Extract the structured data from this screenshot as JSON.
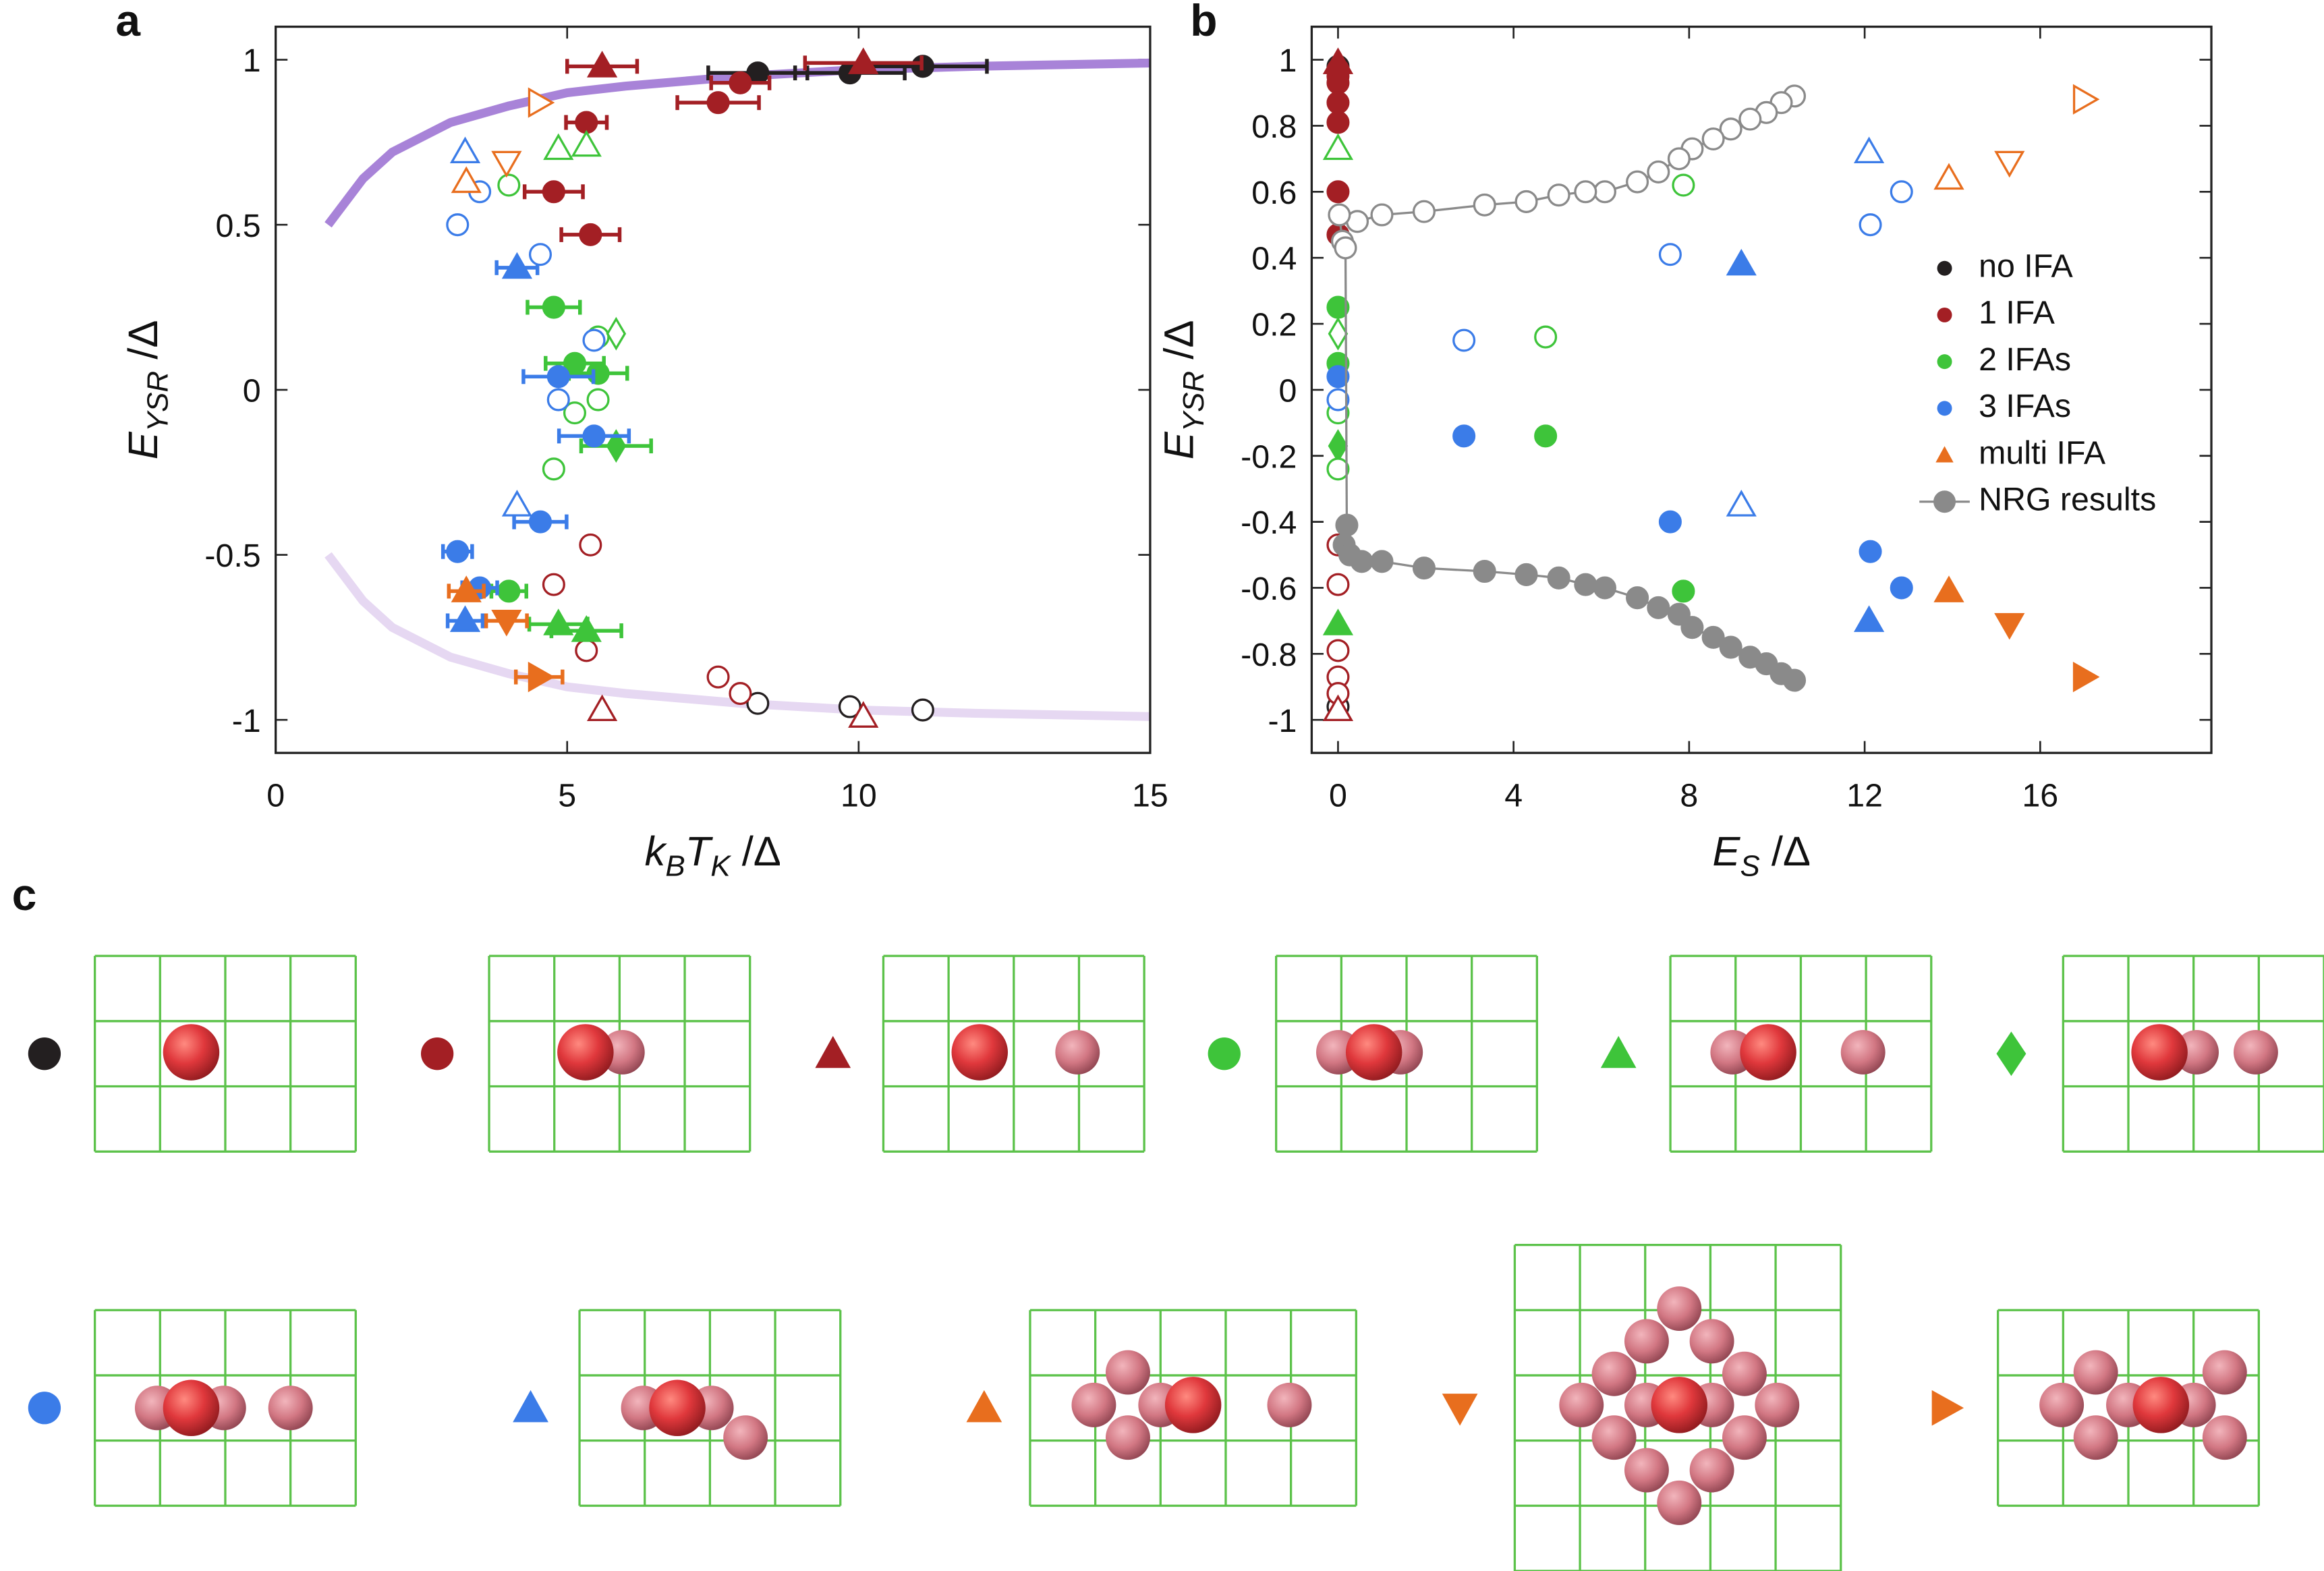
{
  "chart_data": [
    {
      "type": "scatter",
      "label": "a",
      "xlabel": [
        {
          "text": "k",
          "italic": true
        },
        {
          "text": "B",
          "italic": true,
          "sub": true
        },
        {
          "text": "T",
          "italic": true
        },
        {
          "text": "K",
          "italic": true,
          "sub": true
        },
        {
          "text": " /Δ"
        }
      ],
      "ylabel": [
        {
          "text": "E",
          "italic": true
        },
        {
          "text": "YSR",
          "italic": true,
          "sub": true
        },
        {
          "text": " /Δ"
        }
      ],
      "xlim": [
        0,
        15
      ],
      "ylim": [
        -1.1,
        1.1
      ],
      "xticks": [
        0,
        5,
        10,
        15
      ],
      "yticks": [
        1,
        0.5,
        0,
        -0.5,
        -1
      ],
      "curves": [
        {
          "color": "#a883d8",
          "x": [
            0.9,
            1.5,
            2,
            3,
            4,
            5,
            6,
            8,
            10,
            12,
            15
          ],
          "values": [
            0.5,
            0.64,
            0.72,
            0.81,
            0.86,
            0.9,
            0.92,
            0.95,
            0.97,
            0.98,
            0.99
          ]
        },
        {
          "color": "#e6d8f2",
          "x": [
            0.9,
            1.5,
            2,
            3,
            4,
            5,
            6,
            8,
            10,
            12,
            15
          ],
          "values": [
            -0.5,
            -0.64,
            -0.72,
            -0.81,
            -0.86,
            -0.9,
            -0.92,
            -0.95,
            -0.97,
            -0.98,
            -0.99
          ]
        }
      ],
      "series": [
        {
          "color": "#231f20",
          "x": [
            8.27,
            9.85,
            11.1,
            8.27,
            9.85,
            11.1
          ],
          "values": [
            0.96,
            0.96,
            0.98,
            -0.95,
            -0.96,
            -0.97
          ],
          "marker": [
            "o",
            "o",
            "o",
            "o",
            "o",
            "o"
          ],
          "filled": [
            true,
            true,
            true,
            false,
            false,
            false
          ],
          "xerr": [
            0.85,
            0.94,
            1.1,
            null,
            null,
            null
          ]
        },
        {
          "color": "#a31f24",
          "x": [
            5.33,
            7.97,
            7.59,
            4.77,
            5.4,
            5.6,
            10.08,
            5.4,
            4.77,
            5.33,
            7.59,
            7.97,
            5.6,
            10.08
          ],
          "values": [
            0.81,
            0.93,
            0.87,
            0.6,
            0.47,
            0.98,
            0.99,
            -0.47,
            -0.59,
            -0.79,
            -0.87,
            -0.92,
            -0.97,
            -0.99
          ],
          "marker": [
            "o",
            "o",
            "o",
            "o",
            "o",
            "^",
            "^",
            "o",
            "o",
            "o",
            "o",
            "o",
            "^",
            "^"
          ],
          "filled": [
            true,
            true,
            true,
            true,
            true,
            true,
            true,
            false,
            false,
            false,
            false,
            false,
            false,
            false
          ],
          "xerr": [
            0.35,
            0.5,
            0.7,
            0.5,
            0.5,
            0.6,
            1.0,
            null,
            null,
            null,
            null,
            null,
            null,
            null
          ]
        },
        {
          "color": "#3ec43a",
          "x": [
            4.77,
            5.13,
            5.53,
            4.0,
            4.85,
            5.33,
            5.84,
            4.0,
            4.77,
            5.13,
            5.53,
            5.53,
            4.85,
            5.33,
            5.84
          ],
          "values": [
            0.25,
            0.08,
            0.05,
            -0.61,
            -0.71,
            -0.73,
            -0.17,
            0.62,
            -0.24,
            -0.07,
            -0.03,
            0.16,
            0.73,
            0.74,
            0.17
          ],
          "marker": [
            "o",
            "o",
            "o",
            "o",
            "^",
            "^",
            "d",
            "o",
            "o",
            "o",
            "o",
            "o",
            "^",
            "^",
            "d"
          ],
          "filled": [
            true,
            true,
            true,
            true,
            true,
            true,
            true,
            false,
            false,
            false,
            false,
            false,
            false,
            false,
            false
          ],
          "xerr": [
            0.45,
            0.5,
            0.5,
            0.3,
            0.5,
            0.6,
            0.6,
            null,
            null,
            null,
            null,
            null,
            null,
            null,
            null
          ]
        },
        {
          "color": "#3b7ce8",
          "x": [
            3.12,
            3.5,
            4.54,
            4.85,
            5.46,
            4.14,
            3.25,
            3.12,
            3.5,
            4.54,
            4.85,
            5.46,
            3.25,
            4.14
          ],
          "values": [
            -0.49,
            -0.6,
            -0.4,
            0.04,
            -0.14,
            0.37,
            -0.7,
            0.5,
            0.6,
            0.41,
            -0.03,
            0.15,
            0.72,
            -0.35
          ],
          "marker": [
            "o",
            "o",
            "o",
            "o",
            "o",
            "^",
            "^",
            "o",
            "o",
            "o",
            "o",
            "o",
            "^",
            "^"
          ],
          "filled": [
            true,
            true,
            true,
            true,
            true,
            true,
            true,
            false,
            false,
            false,
            false,
            false,
            false,
            false
          ],
          "xerr": [
            0.25,
            0.3,
            0.45,
            0.6,
            0.6,
            0.35,
            0.3,
            null,
            null,
            null,
            null,
            null,
            null,
            null
          ]
        },
        {
          "color": "#e86e1e",
          "x": [
            3.27,
            3.27,
            3.96,
            3.96,
            4.52,
            4.52
          ],
          "values": [
            -0.61,
            0.63,
            -0.7,
            0.69,
            -0.87,
            0.87
          ],
          "marker": [
            "^",
            "^",
            "v",
            "v",
            ">",
            ">"
          ],
          "filled": [
            true,
            false,
            true,
            false,
            true,
            false
          ],
          "xerr": [
            0.3,
            null,
            0.35,
            null,
            0.4,
            null
          ]
        }
      ]
    },
    {
      "type": "scatter",
      "label": "b",
      "xlabel": [
        {
          "text": "E",
          "italic": true
        },
        {
          "text": "S",
          "italic": true,
          "sub": true
        },
        {
          "text": " /Δ"
        }
      ],
      "ylabel": [
        {
          "text": "E",
          "italic": true
        },
        {
          "text": "YSR",
          "italic": true,
          "sub": true
        },
        {
          "text": " /Δ"
        }
      ],
      "xlim": [
        -0.6,
        19.9
      ],
      "ylim": [
        -1.1,
        1.1
      ],
      "xticks": [
        0,
        4,
        8,
        12,
        16
      ],
      "yticks": [
        1,
        0.8,
        0.6,
        0.4,
        0.2,
        0,
        -0.2,
        -0.4,
        -0.6,
        -0.8,
        -1
      ],
      "legend": "upper right",
      "series": [
        {
          "name": "no IFA",
          "color": "#231f20",
          "x": [
            0,
            0
          ],
          "values": [
            0.98,
            -0.96
          ],
          "marker": [
            "o",
            "o"
          ],
          "filled": [
            true,
            false
          ]
        },
        {
          "name": "1 IFA",
          "color": "#a31f24",
          "x": [
            0,
            0,
            0,
            0,
            0,
            0,
            0,
            0,
            0,
            0,
            0,
            0,
            0,
            0
          ],
          "values": [
            0.97,
            0.95,
            0.93,
            0.87,
            0.81,
            0.6,
            0.47,
            0.99,
            -0.47,
            -0.59,
            -0.79,
            -0.87,
            -0.92,
            -0.97
          ],
          "marker": [
            "o",
            "o",
            "o",
            "o",
            "o",
            "o",
            "o",
            "^",
            "o",
            "o",
            "o",
            "o",
            "o",
            "^"
          ],
          "filled": [
            true,
            true,
            true,
            true,
            true,
            true,
            true,
            true,
            false,
            false,
            false,
            false,
            false,
            false
          ]
        },
        {
          "name": "2 IFAs",
          "color": "#3ec43a",
          "x": [
            0,
            0,
            0,
            0,
            0,
            0,
            0,
            0,
            4.73,
            4.73,
            7.87,
            7.87
          ],
          "values": [
            0.25,
            0.08,
            -0.71,
            -0.17,
            -0.07,
            -0.24,
            0.73,
            0.17,
            0.16,
            -0.14,
            0.62,
            -0.61
          ],
          "marker": [
            "o",
            "o",
            "^",
            "d",
            "o",
            "o",
            "^",
            "d",
            "o",
            "o",
            "o",
            "o"
          ],
          "filled": [
            true,
            true,
            true,
            true,
            false,
            false,
            false,
            false,
            false,
            true,
            false,
            true
          ]
        },
        {
          "name": "3 IFAs",
          "color": "#3b7ce8",
          "x": [
            0,
            0,
            2.87,
            2.87,
            7.57,
            7.57,
            9.19,
            9.19,
            12.1,
            12.1,
            12.13,
            12.13,
            12.84,
            12.84
          ],
          "values": [
            0.04,
            -0.03,
            0.15,
            -0.14,
            0.41,
            -0.4,
            0.38,
            -0.35,
            0.72,
            -0.7,
            0.5,
            -0.49,
            0.6,
            -0.6
          ],
          "marker": [
            "o",
            "o",
            "o",
            "o",
            "o",
            "o",
            "^",
            "^",
            "^",
            "^",
            "o",
            "o",
            "o",
            "o"
          ],
          "filled": [
            true,
            false,
            false,
            true,
            false,
            true,
            true,
            false,
            false,
            true,
            false,
            true,
            false,
            true
          ]
        },
        {
          "name": "multi IFA",
          "color": "#e86e1e",
          "x": [
            13.92,
            13.92,
            15.3,
            15.3,
            17.0,
            17.0
          ],
          "values": [
            0.64,
            -0.61,
            0.69,
            -0.71,
            0.88,
            -0.87
          ],
          "marker": [
            "^",
            "^",
            "v",
            "v",
            ">",
            ">"
          ],
          "filled": [
            false,
            true,
            false,
            true,
            false,
            true
          ]
        },
        {
          "name": "NRG results",
          "color": "#8a8a8a",
          "line": true,
          "x": [
            10.4,
            10.1,
            9.76,
            9.39,
            8.95,
            8.55,
            8.07,
            7.77,
            7.3,
            6.82,
            6.08,
            5.64,
            5.03,
            4.29,
            3.34,
            1.96,
            1.0,
            0.44,
            0.03,
            0.1,
            0.17,
            0.2,
            0.14,
            0.27,
            0.54,
            1.0,
            1.96,
            3.34,
            4.29,
            5.03,
            5.64,
            6.08,
            6.82,
            7.3,
            7.77,
            8.07,
            8.55,
            8.95,
            9.39,
            9.76,
            10.1,
            10.4
          ],
          "values": [
            0.89,
            0.87,
            0.84,
            0.82,
            0.79,
            0.76,
            0.73,
            0.7,
            0.66,
            0.63,
            0.6,
            0.6,
            0.59,
            0.57,
            0.56,
            0.54,
            0.53,
            0.51,
            0.53,
            0.45,
            0.43,
            -0.41,
            -0.47,
            -0.5,
            -0.52,
            -0.52,
            -0.54,
            -0.55,
            -0.56,
            -0.57,
            -0.59,
            -0.6,
            -0.63,
            -0.66,
            -0.68,
            -0.72,
            -0.75,
            -0.78,
            -0.81,
            -0.83,
            -0.86,
            -0.88
          ],
          "marker": [
            "o",
            "o",
            "o",
            "o",
            "o",
            "o",
            "o",
            "o",
            "o",
            "o",
            "o",
            "o",
            "o",
            "o",
            "o",
            "o",
            "o",
            "o",
            "o",
            "o",
            "o",
            "o",
            "o",
            "o",
            "o",
            "o",
            "o",
            "o",
            "o",
            "o",
            "o",
            "o",
            "o",
            "o",
            "o",
            "o",
            "o",
            "o",
            "o",
            "o",
            "o",
            "o"
          ],
          "filled": [
            false,
            false,
            false,
            false,
            false,
            false,
            false,
            false,
            false,
            false,
            false,
            false,
            false,
            false,
            false,
            false,
            false,
            false,
            false,
            false,
            false,
            true,
            true,
            true,
            true,
            true,
            true,
            true,
            true,
            true,
            true,
            true,
            true,
            true,
            true,
            true,
            true,
            true,
            true,
            true,
            true,
            true
          ]
        }
      ]
    }
  ],
  "diagram": {
    "label": "c"
  }
}
